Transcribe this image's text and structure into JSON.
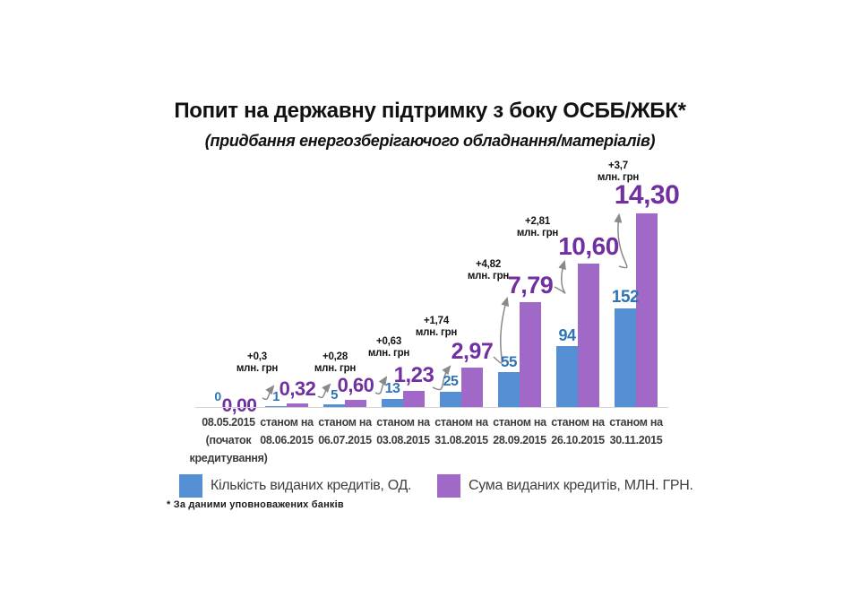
{
  "slide": {
    "title": "Попит на державну підтримку з боку ОСББ/ЖБК*",
    "subtitle": "(придбання енергозберігаючого обладнання/матеріалів)",
    "footnote": "* За даними уповноважених банків"
  },
  "legend": {
    "items": [
      {
        "label": "Кількість виданих кредитів, ОД.",
        "color": "#5590D5"
      },
      {
        "label": "Сума виданих кредитів, МЛН. ГРН.",
        "color": "#A069C8"
      }
    ],
    "position": "bottom"
  },
  "colors": {
    "count_bar": "#5590D5",
    "sum_bar": "#A069C8",
    "count_label_text": "#2E74B5",
    "sum_label_text": "#7030A0",
    "arrow": "#8a8a8a"
  },
  "chart_data": {
    "type": "bar",
    "title": "Попит на державну підтримку з боку ОСББ/ЖБК*",
    "subtitle": "(придбання енергозберігаючого обладнання/матеріалів)",
    "categories": [
      [
        "08.05.2015",
        "(початок",
        "кредитування)"
      ],
      [
        "станом на",
        "08.06.2015"
      ],
      [
        "станом на",
        "06.07.2015"
      ],
      [
        "станом на",
        "03.08.2015"
      ],
      [
        "станом на",
        "31.08.2015"
      ],
      [
        "станом на",
        "28.09.2015"
      ],
      [
        "станом на",
        "26.10.2015"
      ],
      [
        "станом на",
        "30.11.2015"
      ]
    ],
    "series": [
      {
        "name": "Кількість виданих кредитів, ОД.",
        "color": "#5590D5",
        "label_color": "#2E74B5",
        "values": [
          0,
          1,
          5,
          13,
          25,
          55,
          94,
          152
        ],
        "labels": [
          "0",
          "1",
          "5",
          "13",
          "25",
          "55",
          "94",
          "152"
        ]
      },
      {
        "name": "Сума виданих кредитів, МЛН. ГРН.",
        "color": "#A069C8",
        "label_color": "#7030A0",
        "values": [
          0,
          0.32,
          0.6,
          1.23,
          2.97,
          7.79,
          10.6,
          14.3
        ],
        "labels": [
          "0,00",
          "0,32",
          "0,60",
          "1,23",
          "2,97",
          "7,79",
          "10,60",
          "14,30"
        ]
      }
    ],
    "annotations": [
      {
        "delta": "+0,3",
        "unit": "млн. грн"
      },
      {
        "delta": "+0,28",
        "unit": "млн. грн"
      },
      {
        "delta": "+0,63",
        "unit": "млн. грн"
      },
      {
        "delta": "+1,74",
        "unit": "млн. грн"
      },
      {
        "delta": "+4,82",
        "unit": "млн. грн"
      },
      {
        "delta": "+2,81",
        "unit": "млн. грн"
      },
      {
        "delta": "+3,7",
        "unit": "млн. грн"
      }
    ],
    "axes": {
      "y_left_implied_range": [
        0,
        160
      ],
      "y_right_implied_range": [
        0,
        15
      ],
      "gridlines": false,
      "axis_labels_visible": false
    },
    "legend_position": "bottom"
  }
}
